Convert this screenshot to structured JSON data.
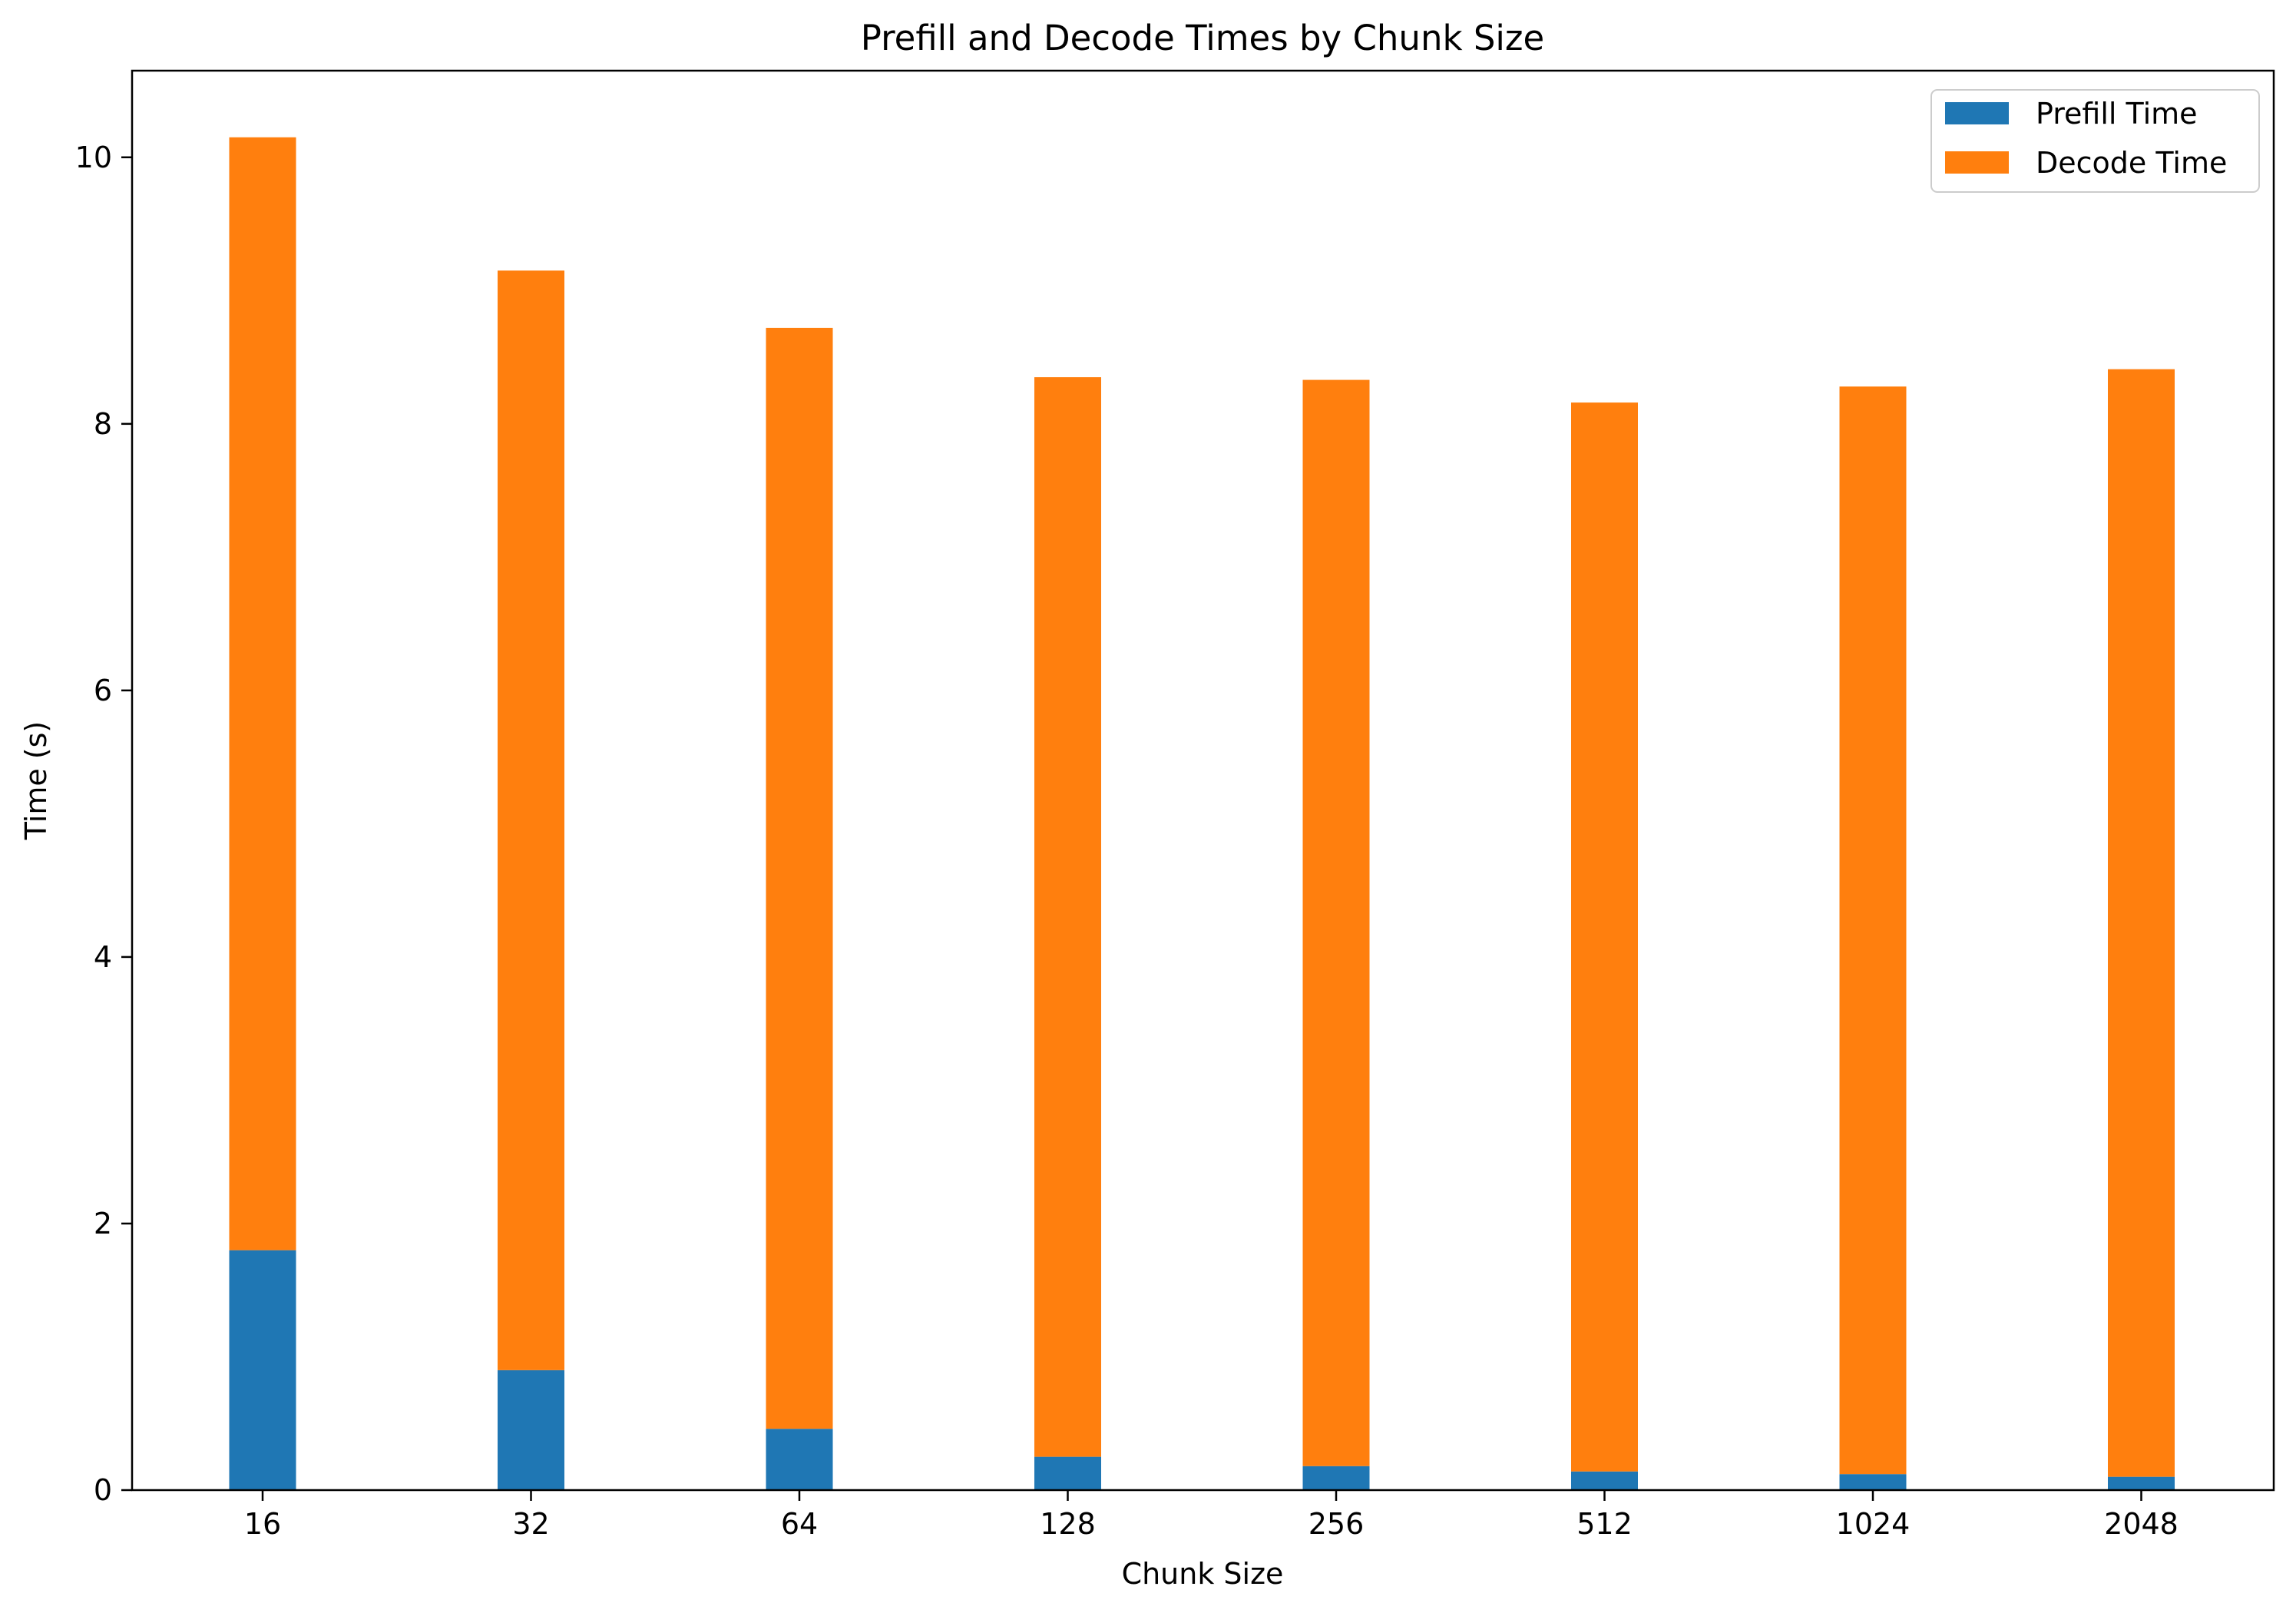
{
  "chart_data": {
    "type": "bar",
    "stacked": true,
    "title": "Prefill and Decode Times by Chunk Size",
    "xlabel": "Chunk Size",
    "ylabel": "Time (s)",
    "categories": [
      "16",
      "32",
      "64",
      "128",
      "256",
      "512",
      "1024",
      "2048"
    ],
    "series": [
      {
        "name": "Prefill Time",
        "color": "#1f77b4",
        "values": [
          1.8,
          0.9,
          0.46,
          0.25,
          0.18,
          0.14,
          0.12,
          0.1
        ]
      },
      {
        "name": "Decode Time",
        "color": "#ff7f0e",
        "values": [
          8.35,
          8.25,
          8.26,
          8.1,
          8.15,
          8.02,
          8.16,
          8.31
        ]
      }
    ],
    "yticks": [
      0,
      2,
      4,
      6,
      8,
      10
    ],
    "ylim": [
      0,
      10.65
    ],
    "grid": false,
    "legend_position": "top-right"
  }
}
